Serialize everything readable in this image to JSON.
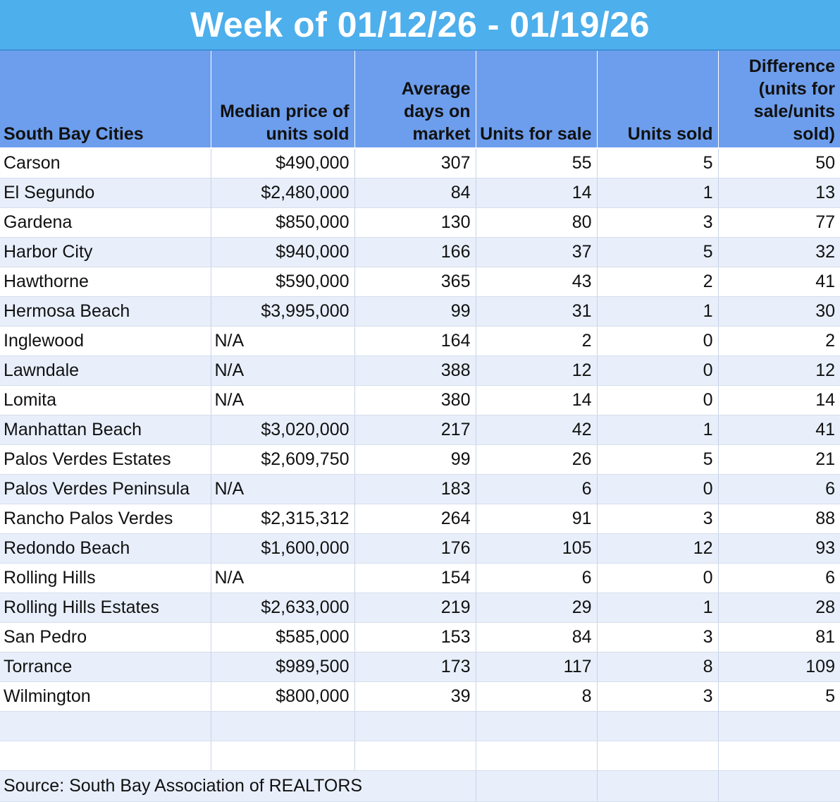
{
  "title": "Week of 01/12/26 - 01/19/26",
  "headers": {
    "city": "South Bay Cities",
    "median": "Median price of units sold",
    "days": "Average days on market",
    "for_sale": "Units for sale",
    "sold": "Units sold",
    "difference": "Difference (units for sale/units sold)"
  },
  "rows": [
    {
      "city": "Carson",
      "median": "$490,000",
      "days": "307",
      "for_sale": "55",
      "sold": "5",
      "difference": "50"
    },
    {
      "city": "El Segundo",
      "median": "$2,480,000",
      "days": "84",
      "for_sale": "14",
      "sold": "1",
      "difference": "13"
    },
    {
      "city": "Gardena",
      "median": "$850,000",
      "days": "130",
      "for_sale": "80",
      "sold": "3",
      "difference": "77"
    },
    {
      "city": "Harbor City",
      "median": "$940,000",
      "days": "166",
      "for_sale": "37",
      "sold": "5",
      "difference": "32"
    },
    {
      "city": "Hawthorne",
      "median": "$590,000",
      "days": "365",
      "for_sale": "43",
      "sold": "2",
      "difference": "41"
    },
    {
      "city": "Hermosa Beach",
      "median": "$3,995,000",
      "days": "99",
      "for_sale": "31",
      "sold": "1",
      "difference": "30"
    },
    {
      "city": "Inglewood",
      "median": "N/A",
      "days": "164",
      "for_sale": "2",
      "sold": "0",
      "difference": "2"
    },
    {
      "city": "Lawndale",
      "median": "N/A",
      "days": "388",
      "for_sale": "12",
      "sold": "0",
      "difference": "12"
    },
    {
      "city": "Lomita",
      "median": "N/A",
      "days": "380",
      "for_sale": "14",
      "sold": "0",
      "difference": "14"
    },
    {
      "city": "Manhattan Beach",
      "median": "$3,020,000",
      "days": "217",
      "for_sale": "42",
      "sold": "1",
      "difference": "41"
    },
    {
      "city": "Palos Verdes Estates",
      "median": "$2,609,750",
      "days": "99",
      "for_sale": "26",
      "sold": "5",
      "difference": "21"
    },
    {
      "city": "Palos Verdes Peninsula",
      "median": "N/A",
      "days": "183",
      "for_sale": "6",
      "sold": "0",
      "difference": "6"
    },
    {
      "city": "Rancho Palos Verdes",
      "median": "$2,315,312",
      "days": "264",
      "for_sale": "91",
      "sold": "3",
      "difference": "88"
    },
    {
      "city": "Redondo Beach",
      "median": "$1,600,000",
      "days": "176",
      "for_sale": "105",
      "sold": "12",
      "difference": "93"
    },
    {
      "city": "Rolling Hills",
      "median": "N/A",
      "days": "154",
      "for_sale": "6",
      "sold": "0",
      "difference": "6"
    },
    {
      "city": "Rolling Hills Estates",
      "median": "$2,633,000",
      "days": "219",
      "for_sale": "29",
      "sold": "1",
      "difference": "28"
    },
    {
      "city": "San Pedro",
      "median": "$585,000",
      "days": "153",
      "for_sale": "84",
      "sold": "3",
      "difference": "81"
    },
    {
      "city": "Torrance",
      "median": "$989,500",
      "days": "173",
      "for_sale": "117",
      "sold": "8",
      "difference": "109"
    },
    {
      "city": "Wilmington",
      "median": "$800,000",
      "days": "39",
      "for_sale": "8",
      "sold": "3",
      "difference": "5"
    }
  ],
  "source": "Source: South Bay Association of REALTORS",
  "colors": {
    "title_bg": "#4dafec",
    "header_bg": "#6d9eed",
    "band": "#e8effb"
  }
}
